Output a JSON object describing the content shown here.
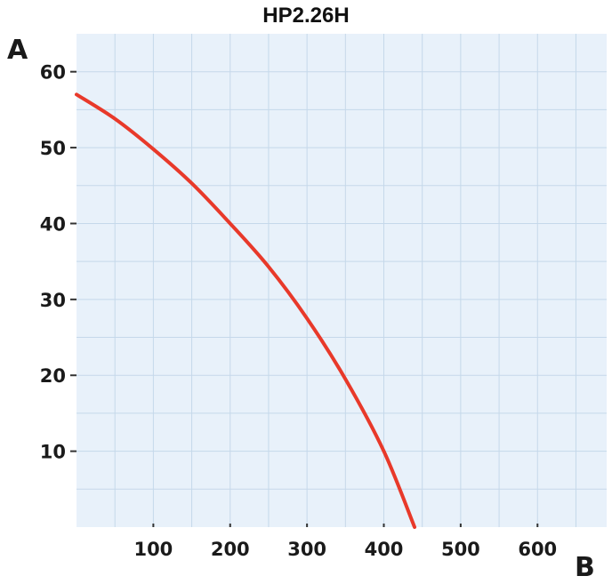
{
  "chart_data": {
    "type": "line",
    "title": "HP2.26H",
    "ylabel": "A",
    "xlabel": "B",
    "xlim": [
      0,
      690
    ],
    "ylim": [
      0,
      65
    ],
    "x_ticks": [
      100,
      200,
      300,
      400,
      500,
      600
    ],
    "y_ticks": [
      10,
      20,
      30,
      40,
      50,
      60
    ],
    "grid": true,
    "series": [
      {
        "color": "#e8392a",
        "x": [
          0,
          50,
          100,
          150,
          200,
          250,
          300,
          350,
          400,
          440
        ],
        "y": [
          57,
          53.8,
          49.8,
          45.3,
          40,
          34.3,
          27.5,
          19.5,
          10,
          0
        ]
      }
    ]
  },
  "colors": {
    "plot_background": "#e8f1fa",
    "grid_line": "#c5d8ea",
    "tick_mark": "#333333",
    "curve": "#e8392a"
  }
}
